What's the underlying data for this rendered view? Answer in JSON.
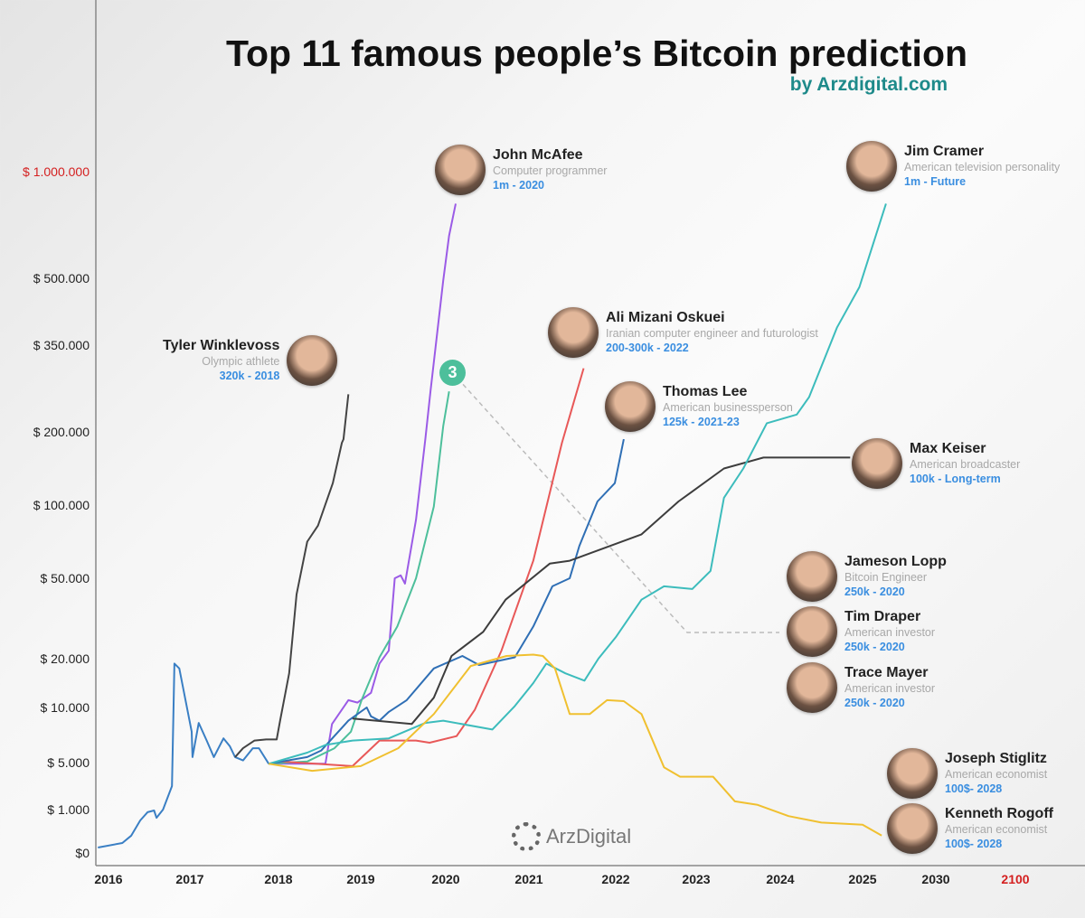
{
  "title": "Top 11 famous people’s Bitcoin prediction",
  "subtitle": "by Arzdigital.com",
  "logo_text": "ArzDigital",
  "badge": "3",
  "people": [
    {
      "name": "John McAfee",
      "role": "Computer programmer",
      "prediction": "1m - 2020"
    },
    {
      "name": "Jim Cramer",
      "role": "American television personality",
      "prediction": "1m - Future"
    },
    {
      "name": "Ali Mizani Oskuei",
      "role": "Iranian computer engineer and futurologist",
      "prediction": "200-300k - 2022"
    },
    {
      "name": "Tyler Winklevoss",
      "role": "Olympic athlete",
      "prediction": "320k - 2018"
    },
    {
      "name": "Thomas Lee",
      "role": "American businessperson",
      "prediction": "125k - 2021-23"
    },
    {
      "name": "Max Keiser",
      "role": "American broadcaster",
      "prediction": "100k - Long-term"
    },
    {
      "name": "Jameson Lopp",
      "role": "Bitcoin Engineer",
      "prediction": "250k - 2020"
    },
    {
      "name": "Tim Draper",
      "role": "American investor",
      "prediction": "250k - 2020"
    },
    {
      "name": "Trace Mayer",
      "role": "American investor",
      "prediction": "250k - 2020"
    },
    {
      "name": "Joseph Stiglitz",
      "role": "American economist",
      "prediction": "100$- 2028"
    },
    {
      "name": "Kenneth Rogoff",
      "role": "American economist",
      "prediction": "100$- 2028"
    }
  ],
  "chart_data": {
    "type": "line",
    "title": "Top 11 famous people’s Bitcoin prediction",
    "y_scale": "non-linear (custom tick spacing)",
    "grid": false,
    "x_ticks": [
      {
        "value": 2016,
        "label": "2016"
      },
      {
        "value": 2017,
        "label": "2017"
      },
      {
        "value": 2018,
        "label": "2018"
      },
      {
        "value": 2019,
        "label": "2019"
      },
      {
        "value": 2020,
        "label": "2020"
      },
      {
        "value": 2021,
        "label": "2021"
      },
      {
        "value": 2022,
        "label": "2022"
      },
      {
        "value": 2023,
        "label": "2023"
      },
      {
        "value": 2024,
        "label": "2024"
      },
      {
        "value": 2025,
        "label": "2025"
      },
      {
        "value": 2030,
        "label": "2030"
      },
      {
        "value": 2100,
        "label": "2100",
        "color": "#d42020"
      }
    ],
    "y_ticks": [
      {
        "value": 0,
        "label": "$0"
      },
      {
        "value": 1000,
        "label": "$ 1.000"
      },
      {
        "value": 5000,
        "label": "$ 5.000"
      },
      {
        "value": 10000,
        "label": "$ 10.000"
      },
      {
        "value": 20000,
        "label": "$ 20.000"
      },
      {
        "value": 50000,
        "label": "$ 50.000"
      },
      {
        "value": 100000,
        "label": "$ 100.000"
      },
      {
        "value": 200000,
        "label": "$ 200.000"
      },
      {
        "value": 350000,
        "label": "$ 350.000"
      },
      {
        "value": 500000,
        "label": "$ 500.000"
      },
      {
        "value": 1000000,
        "label": "$ 1.000.000",
        "color": "#d42020"
      }
    ],
    "series": [
      {
        "id": "history",
        "color": "#3a7fc4",
        "points": [
          [
            2015.87,
            125
          ],
          [
            2016.17,
            230
          ],
          [
            2016.28,
            400
          ],
          [
            2016.39,
            750
          ],
          [
            2016.48,
            940
          ],
          [
            2016.56,
            980
          ],
          [
            2016.59,
            810
          ],
          [
            2016.67,
            1000
          ],
          [
            2016.78,
            3000
          ],
          [
            2016.81,
            19000
          ],
          [
            2016.87,
            18000
          ],
          [
            2017.02,
            7800
          ],
          [
            2017.03,
            5500
          ],
          [
            2017.1,
            8600
          ],
          [
            2017.19,
            7000
          ],
          [
            2017.27,
            5500
          ],
          [
            2017.38,
            7200
          ],
          [
            2017.45,
            6500
          ],
          [
            2017.51,
            5500
          ],
          [
            2017.6,
            5200
          ],
          [
            2017.71,
            6300
          ],
          [
            2017.78,
            6300
          ],
          [
            2017.89,
            4900
          ]
        ]
      },
      {
        "id": "tyler-winklevoss",
        "color": "#444444",
        "points": [
          [
            2017.51,
            5500
          ],
          [
            2017.6,
            6300
          ],
          [
            2017.73,
            7000
          ],
          [
            2017.86,
            7100
          ],
          [
            2017.98,
            7100
          ],
          [
            2018.02,
            8800
          ],
          [
            2018.13,
            17000
          ],
          [
            2018.22,
            44000
          ],
          [
            2018.35,
            75000
          ],
          [
            2018.48,
            86000
          ],
          [
            2018.66,
            130000
          ],
          [
            2018.77,
            185000
          ],
          [
            2018.79,
            190000
          ],
          [
            2018.85,
            265000
          ]
        ]
      },
      {
        "id": "john-mcafee",
        "color": "#9b5be6",
        "points": [
          [
            2017.89,
            4900
          ],
          [
            2018.35,
            4900
          ],
          [
            2018.57,
            4900
          ],
          [
            2018.65,
            8500
          ],
          [
            2018.85,
            11500
          ],
          [
            2018.96,
            11000
          ],
          [
            2019.12,
            13000
          ],
          [
            2019.22,
            19000
          ],
          [
            2019.33,
            23000
          ],
          [
            2019.4,
            50000
          ],
          [
            2019.47,
            52000
          ],
          [
            2019.52,
            48000
          ],
          [
            2019.65,
            90000
          ],
          [
            2019.76,
            190000
          ],
          [
            2019.82,
            270000
          ],
          [
            2019.97,
            495000
          ],
          [
            2020.04,
            700000
          ],
          [
            2020.12,
            850000
          ]
        ]
      },
      {
        "id": "lopp-draper-mayer",
        "color": "#4dbf9b",
        "points": [
          [
            2017.89,
            4900
          ],
          [
            2018.35,
            5100
          ],
          [
            2018.68,
            6300
          ],
          [
            2018.88,
            7800
          ],
          [
            2019.01,
            11500
          ],
          [
            2019.22,
            20500
          ],
          [
            2019.43,
            32000
          ],
          [
            2019.65,
            50000
          ],
          [
            2019.86,
            99000
          ],
          [
            2019.97,
            210000
          ],
          [
            2020.04,
            270000
          ]
        ]
      },
      {
        "id": "ali-mizani-oskuei",
        "color": "#e85858",
        "points": [
          [
            2017.89,
            4900
          ],
          [
            2018.02,
            5100
          ],
          [
            2018.9,
            4700
          ],
          [
            2019.22,
            7000
          ],
          [
            2019.65,
            7000
          ],
          [
            2019.81,
            6800
          ],
          [
            2020.13,
            7400
          ],
          [
            2020.35,
            9800
          ],
          [
            2020.67,
            23000
          ],
          [
            2021.05,
            62000
          ],
          [
            2021.38,
            185000
          ],
          [
            2021.63,
            310000
          ]
        ]
      },
      {
        "id": "thomas-lee",
        "color": "#2f6fb5",
        "points": [
          [
            2017.89,
            4900
          ],
          [
            2018.35,
            5500
          ],
          [
            2018.52,
            6100
          ],
          [
            2018.85,
            8800
          ],
          [
            2019.07,
            10000
          ],
          [
            2019.12,
            9200
          ],
          [
            2019.22,
            8800
          ],
          [
            2019.33,
            9600
          ],
          [
            2019.54,
            11500
          ],
          [
            2019.86,
            18000
          ],
          [
            2020.2,
            21000
          ],
          [
            2020.4,
            18700
          ],
          [
            2020.83,
            20500
          ],
          [
            2021.05,
            32000
          ],
          [
            2021.27,
            47000
          ],
          [
            2021.47,
            50000
          ],
          [
            2021.58,
            72000
          ],
          [
            2021.79,
            105000
          ],
          [
            2021.99,
            130000
          ],
          [
            2022.1,
            190000
          ]
        ]
      },
      {
        "id": "max-keiser",
        "color": "#3d3d3d",
        "points": [
          [
            2018.9,
            9000
          ],
          [
            2019.6,
            8500
          ],
          [
            2019.86,
            12000
          ],
          [
            2020.07,
            21000
          ],
          [
            2020.45,
            30000
          ],
          [
            2020.72,
            42000
          ],
          [
            2021.24,
            60000
          ],
          [
            2021.47,
            62000
          ],
          [
            2022.32,
            80000
          ],
          [
            2022.78,
            105000
          ],
          [
            2023.33,
            150000
          ],
          [
            2023.8,
            165000
          ],
          [
            2024.85,
            165000
          ]
        ]
      },
      {
        "id": "jim-cramer",
        "color": "#3cbcbc",
        "points": [
          [
            2017.89,
            4900
          ],
          [
            2018.35,
            5900
          ],
          [
            2018.57,
            6600
          ],
          [
            2018.9,
            7000
          ],
          [
            2019.33,
            7200
          ],
          [
            2019.76,
            8600
          ],
          [
            2019.97,
            8800
          ],
          [
            2020.56,
            8000
          ],
          [
            2020.83,
            10300
          ],
          [
            2021.05,
            15000
          ],
          [
            2021.2,
            19000
          ],
          [
            2021.42,
            17000
          ],
          [
            2021.64,
            15500
          ],
          [
            2021.8,
            20000
          ],
          [
            2022.0,
            28000
          ],
          [
            2022.32,
            42000
          ],
          [
            2022.6,
            47000
          ],
          [
            2022.95,
            46000
          ],
          [
            2023.17,
            55000
          ],
          [
            2023.33,
            110000
          ],
          [
            2023.56,
            150000
          ],
          [
            2023.84,
            215000
          ],
          [
            2024.2,
            230000
          ],
          [
            2024.35,
            260000
          ],
          [
            2024.69,
            390000
          ],
          [
            2024.96,
            480000
          ],
          [
            2026.6,
            850000
          ]
        ]
      },
      {
        "id": "stiglitz-rogoff",
        "color": "#f0c030",
        "points": [
          [
            2017.89,
            4900
          ],
          [
            2018.41,
            4300
          ],
          [
            2019.0,
            4700
          ],
          [
            2019.44,
            6300
          ],
          [
            2019.86,
            9400
          ],
          [
            2020.3,
            18500
          ],
          [
            2020.73,
            21000
          ],
          [
            2021.05,
            21500
          ],
          [
            2021.16,
            21000
          ],
          [
            2021.3,
            18000
          ],
          [
            2021.47,
            9400
          ],
          [
            2021.7,
            9400
          ],
          [
            2021.9,
            11500
          ],
          [
            2022.1,
            11300
          ],
          [
            2022.32,
            9400
          ],
          [
            2022.6,
            4600
          ],
          [
            2022.8,
            3800
          ],
          [
            2023.2,
            3800
          ],
          [
            2023.46,
            1700
          ],
          [
            2023.73,
            1400
          ],
          [
            2024.1,
            850
          ],
          [
            2024.5,
            700
          ],
          [
            2025.0,
            650
          ],
          [
            2026.3,
            400
          ]
        ]
      }
    ]
  }
}
